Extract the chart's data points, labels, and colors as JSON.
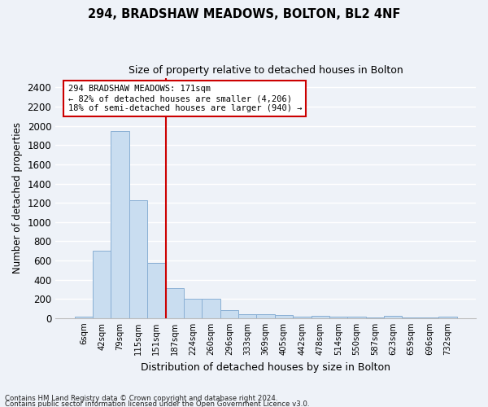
{
  "title_line1": "294, BRADSHAW MEADOWS, BOLTON, BL2 4NF",
  "title_line2": "Size of property relative to detached houses in Bolton",
  "xlabel": "Distribution of detached houses by size in Bolton",
  "ylabel": "Number of detached properties",
  "bar_color": "#c9ddf0",
  "bar_edge_color": "#89afd4",
  "bin_labels": [
    "6sqm",
    "42sqm",
    "79sqm",
    "115sqm",
    "151sqm",
    "187sqm",
    "224sqm",
    "260sqm",
    "296sqm",
    "333sqm",
    "369sqm",
    "405sqm",
    "442sqm",
    "478sqm",
    "514sqm",
    "550sqm",
    "587sqm",
    "623sqm",
    "659sqm",
    "696sqm",
    "732sqm"
  ],
  "bar_heights": [
    18,
    700,
    1950,
    1225,
    575,
    310,
    205,
    205,
    80,
    45,
    40,
    35,
    20,
    25,
    20,
    20,
    5,
    25,
    5,
    5,
    18
  ],
  "ylim": [
    0,
    2500
  ],
  "yticks": [
    0,
    200,
    400,
    600,
    800,
    1000,
    1200,
    1400,
    1600,
    1800,
    2000,
    2200,
    2400
  ],
  "property_line_x": 4.5,
  "annotation_text": "294 BRADSHAW MEADOWS: 171sqm\n← 82% of detached houses are smaller (4,206)\n18% of semi-detached houses are larger (940) →",
  "annotation_box_color": "white",
  "annotation_box_edge": "#cc0000",
  "vline_color": "#cc0000",
  "footnote1": "Contains HM Land Registry data © Crown copyright and database right 2024.",
  "footnote2": "Contains public sector information licensed under the Open Government Licence v3.0.",
  "background_color": "#eef2f8",
  "grid_color": "white",
  "fig_width": 6.0,
  "fig_height": 5.0
}
